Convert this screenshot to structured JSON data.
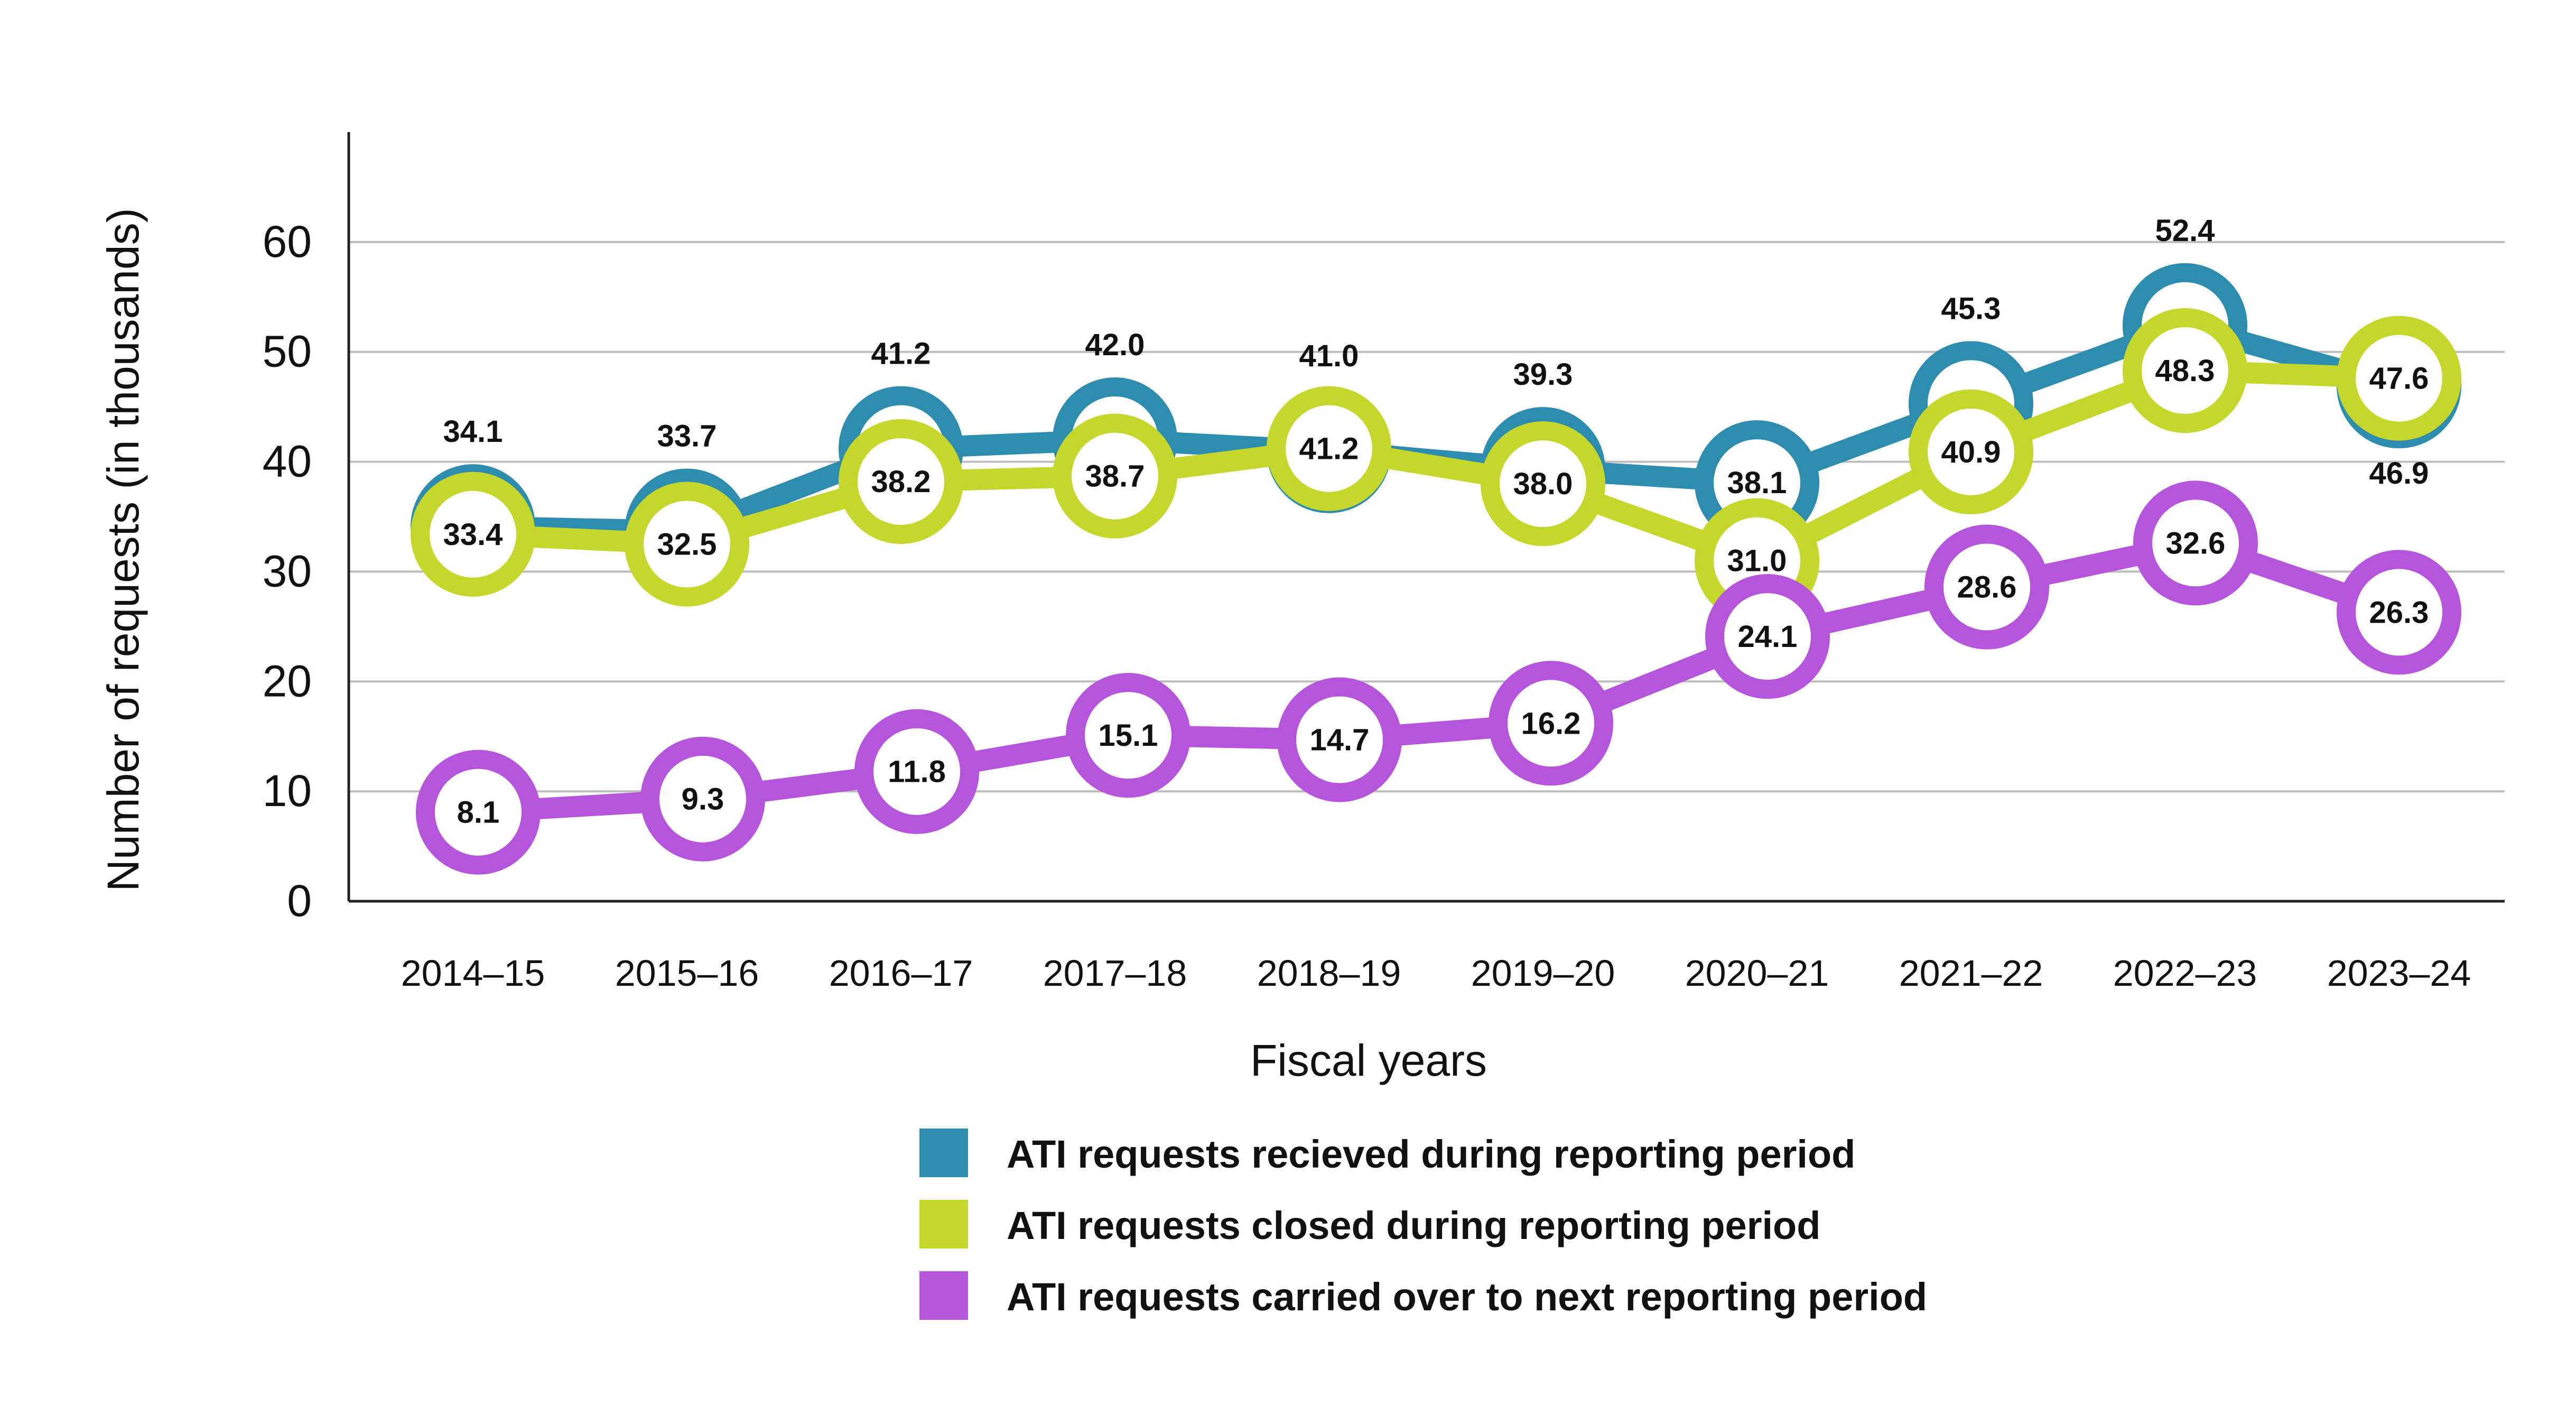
{
  "chart_data": {
    "type": "line",
    "title": "",
    "xlabel": "Fiscal years",
    "ylabel": "Number of requests (in thousands)",
    "ylim": [
      0,
      70
    ],
    "yticks": [
      0,
      10,
      20,
      30,
      40,
      50,
      60
    ],
    "grid": true,
    "legend_position": "bottom",
    "categories": [
      "2014–15",
      "2015–16",
      "2016–17",
      "2017–18",
      "2018–19",
      "2019–20",
      "2020–21",
      "2021–22",
      "2022–23",
      "2023–24"
    ],
    "series": [
      {
        "name": "ATI requests recieved during reporting period",
        "color": "#2e8cae",
        "values": [
          34.1,
          33.7,
          41.2,
          42.0,
          41.0,
          39.3,
          38.1,
          45.3,
          52.4,
          46.9
        ],
        "labels": [
          "34.1",
          "33.7",
          "41.2",
          "42.0",
          "41.0",
          "39.3",
          "38.1",
          "45.3",
          "52.4",
          "46.9"
        ]
      },
      {
        "name": "ATI requests closed during reporting period",
        "color": "#c5d72a",
        "values": [
          33.4,
          32.5,
          38.2,
          38.7,
          41.2,
          38.0,
          31.0,
          40.9,
          48.3,
          47.6
        ],
        "labels": [
          "33.4",
          "32.5",
          "38.2",
          "38.7",
          "41.2",
          "38.0",
          "31.0",
          "40.9",
          "48.3",
          "47.6"
        ]
      },
      {
        "name": "ATI requests carried over to next reporting period",
        "color": "#b455db",
        "values": [
          8.1,
          9.3,
          11.8,
          15.1,
          14.7,
          16.2,
          24.1,
          28.6,
          32.6,
          26.3
        ],
        "labels": [
          "8.1",
          "9.3",
          "11.8",
          "15.1",
          "14.7",
          "16.2",
          "24.1",
          "28.6",
          "32.6",
          "26.3"
        ]
      }
    ]
  }
}
